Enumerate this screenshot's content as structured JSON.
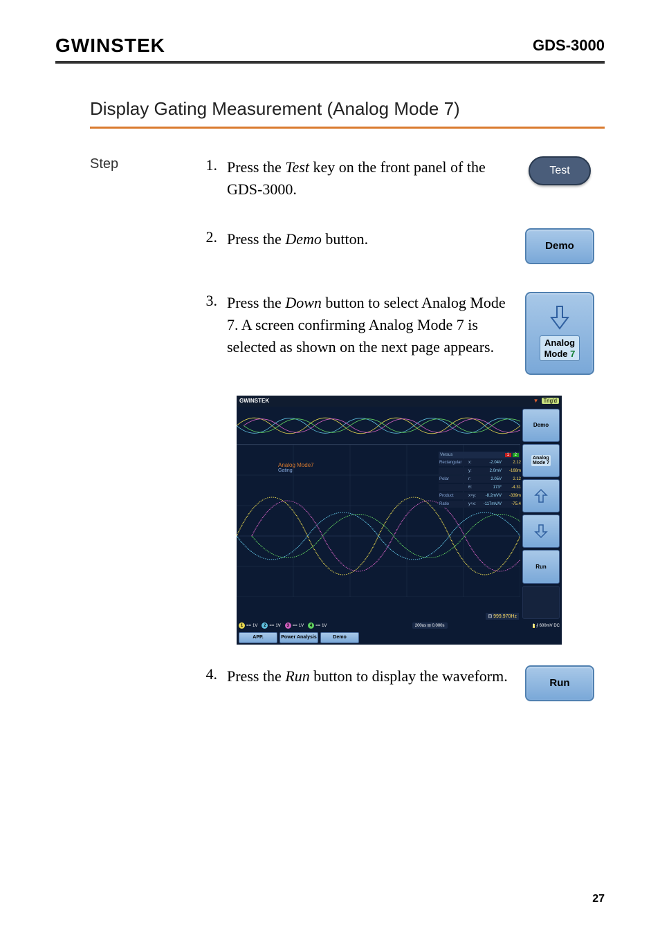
{
  "header": {
    "logo": "GWINSTEK",
    "model": "GDS-3000"
  },
  "section_title": "Display Gating Measurement (Analog Mode 7)",
  "step_label": "Step",
  "steps": [
    {
      "num": "1.",
      "text_pre": "Press the ",
      "text_em": "Test",
      "text_post": " key on the front panel of the GDS-3000.",
      "button_type": "test",
      "button_label": "Test"
    },
    {
      "num": "2.",
      "text_pre": "Press the ",
      "text_em": "Demo",
      "text_post": " button.",
      "button_type": "softkey",
      "button_label": "Demo"
    },
    {
      "num": "3.",
      "text_pre": "Press the ",
      "text_em": "Down",
      "text_post": " button to select Analog Mode 7. A screen confirming Analog Mode 7 is selected as shown on the next page appears.",
      "button_type": "down-mode",
      "mode_line1": "Analog",
      "mode_line2_a": "Mode ",
      "mode_line2_b": "7"
    },
    {
      "num": "4.",
      "text_pre": "Press the ",
      "text_em": "Run",
      "text_post": " button to display the waveform.",
      "button_type": "softkey",
      "button_label": "Run"
    }
  ],
  "screenshot": {
    "top_logo": "GWINSTEK",
    "trig_label": "Trig'd",
    "side_buttons": [
      "Demo",
      "",
      "",
      "",
      "Run",
      ""
    ],
    "side_mode_line1": "Analog",
    "side_mode_line2": "Mode 7",
    "gating_title": "Analog Mode7",
    "gating_sub": "Gating",
    "meas_header1": "1",
    "meas_header2": "2",
    "meas_versus": "Versus",
    "meas_rows": [
      {
        "label": "Rectangular",
        "s1": "x:",
        "v1": "-2.04V",
        "s2": "",
        "v2": "2.12"
      },
      {
        "label": "",
        "s1": "y:",
        "v1": "2.0mV",
        "s2": "",
        "v2": "-168m"
      },
      {
        "label": "Polar",
        "s1": "r:",
        "v1": "2.05V",
        "s2": "",
        "v2": "2.12"
      },
      {
        "label": "",
        "s1": "θ:",
        "v1": "173°",
        "s2": "",
        "v2": "-4.31"
      },
      {
        "label": "Product",
        "s1": "x×y:",
        "v1": "-8.2mVV",
        "s2": "",
        "v2": "-339m"
      },
      {
        "label": "Ratio",
        "s1": "y÷x:",
        "v1": "-117mV/V",
        "s2": "",
        "v2": "-75.4"
      }
    ],
    "time_pre": "200us",
    "time_sep": "200us",
    "channels": [
      {
        "n": "1",
        "cls": "n1",
        "val": "1V"
      },
      {
        "n": "2",
        "cls": "n2",
        "val": "1V"
      },
      {
        "n": "3",
        "cls": "n3",
        "val": "1V"
      },
      {
        "n": "4",
        "cls": "n4",
        "val": "1V"
      }
    ],
    "timebase": "200us",
    "delay": "0.000s",
    "trig_ch": "1",
    "trig_level": "600mV",
    "trig_coupling": "DC",
    "freq": "999.970Hz",
    "bottom_soft": [
      "APP.",
      "Power Analysis",
      "Demo"
    ],
    "colors": {
      "bg": "#0a1830",
      "side_btn": "#7aa8d8",
      "wave1": "#e8d850",
      "wave2": "#60c0e0",
      "wave3": "#d060c0",
      "wave4": "#60d060"
    }
  },
  "page_number": "27",
  "colors": {
    "accent_rule": "#d97a2e",
    "test_btn_bg": "#4a5d7a",
    "softkey_bg_top": "#a8c8e8",
    "softkey_bg_bottom": "#7aa8d8",
    "softkey_border": "#5080b0"
  }
}
